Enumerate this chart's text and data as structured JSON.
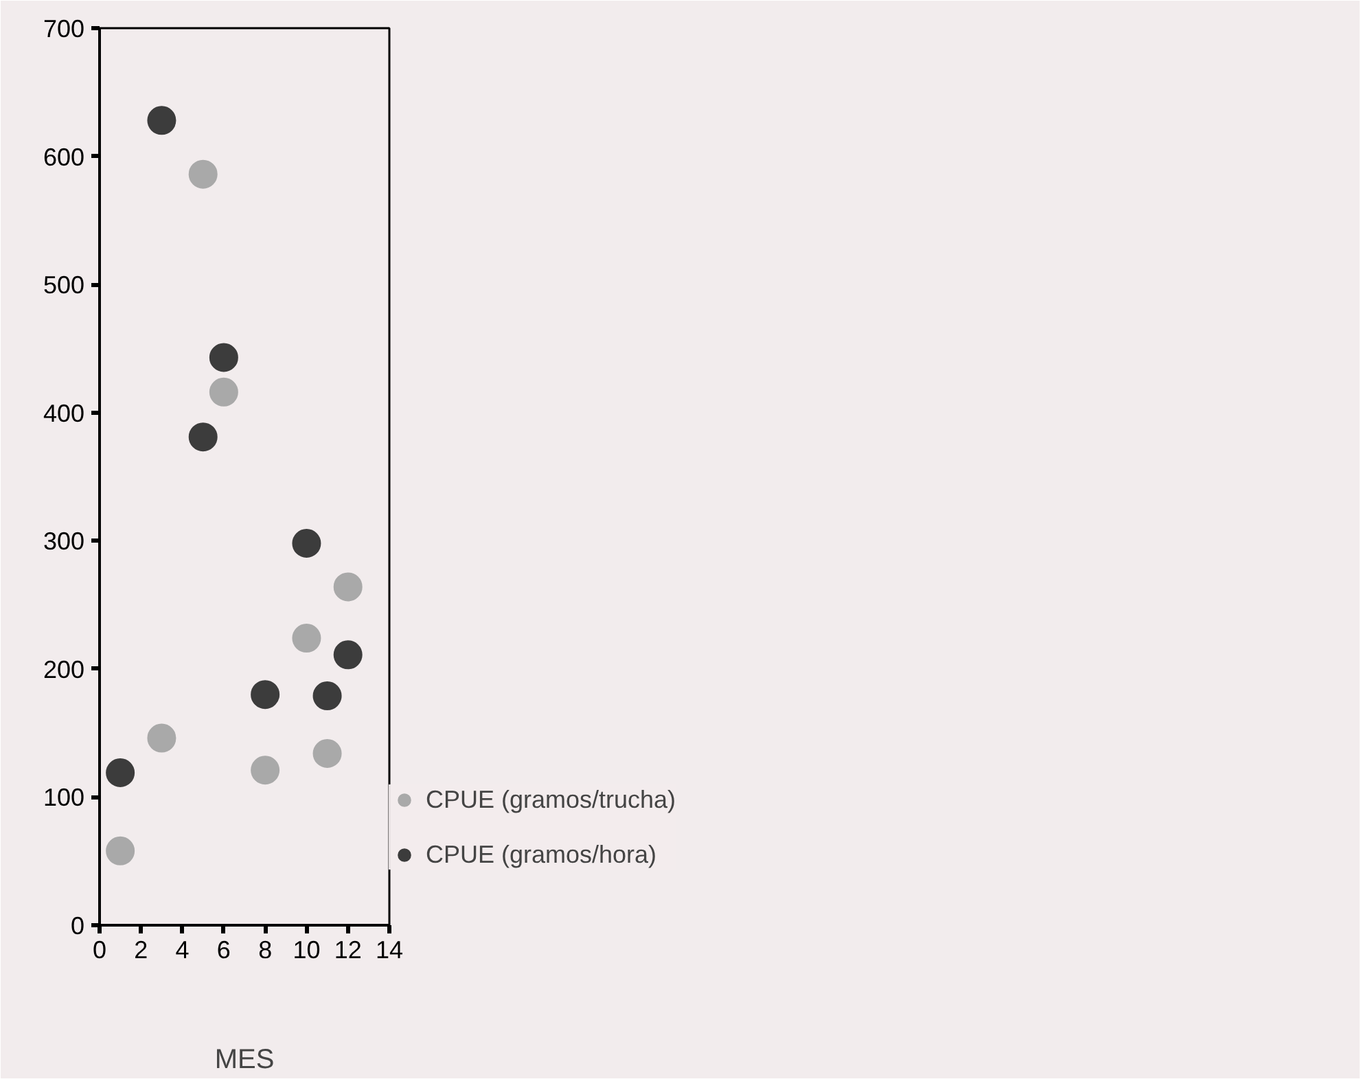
{
  "chart_data": {
    "type": "scatter",
    "xlabel": "MES",
    "xlim": [
      0,
      14
    ],
    "ylim": [
      0,
      700
    ],
    "xticks": [
      0,
      2,
      4,
      6,
      8,
      10,
      12,
      14
    ],
    "yticks": [
      0,
      100,
      200,
      300,
      400,
      500,
      600,
      700
    ],
    "grid": false,
    "legend": "right",
    "marker": "circle",
    "x": [
      1,
      3,
      5,
      6,
      8,
      10,
      11,
      12
    ],
    "series": [
      {
        "name": "CPUE (gramos/trucha)",
        "color": "#a9a9a9",
        "values": [
          58,
          146,
          586,
          416,
          121,
          224,
          134,
          264
        ]
      },
      {
        "name": "CPUE (gramos/hora)",
        "color": "#3c3c3c",
        "values": [
          119,
          628,
          381,
          443,
          180,
          298,
          179,
          211
        ]
      }
    ]
  }
}
